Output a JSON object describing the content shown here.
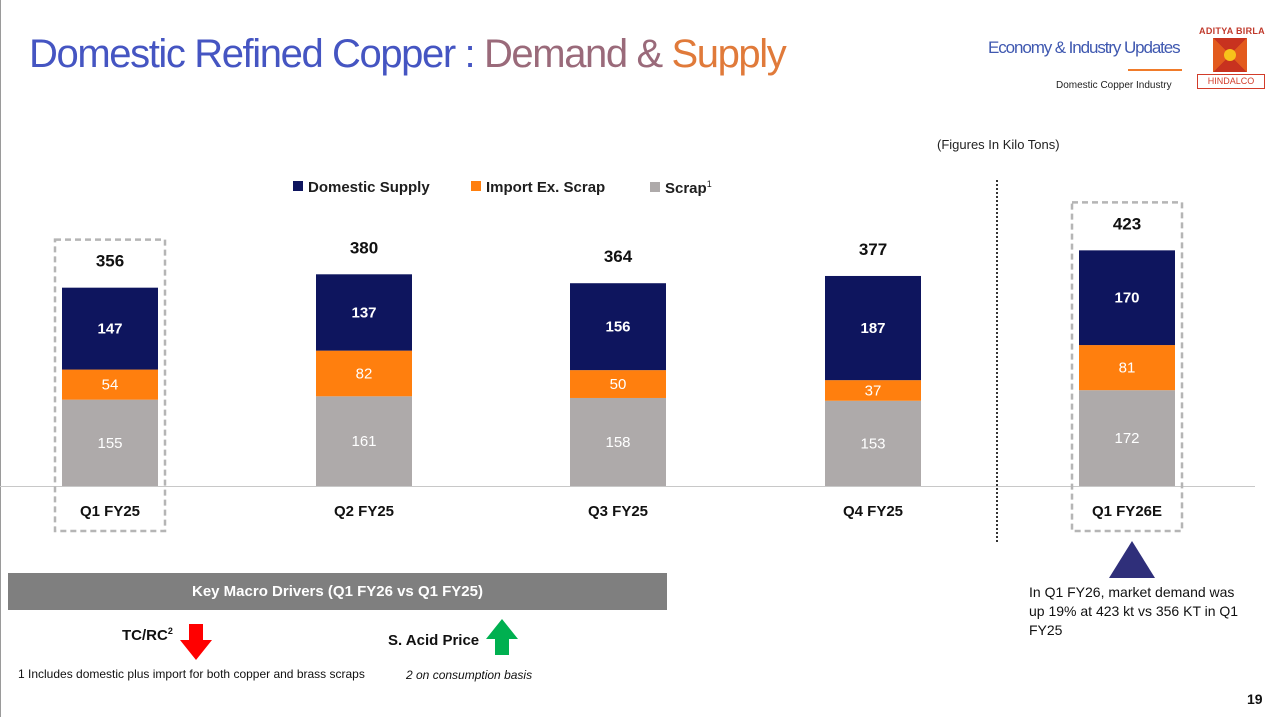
{
  "header": {
    "title_part1": "Domestic Refined Copper : ",
    "title_part2": "Demand & ",
    "title_part3": "Supply",
    "section": "Economy & Industry Updates",
    "subsection": "Domestic Copper Industry",
    "logo_top_text": "ADITYA BIRLA",
    "logo_bottom_text": "HINDALCO"
  },
  "units_note": "(Figures In Kilo Tons)",
  "colors": {
    "domestic_supply": "#0e155e",
    "import_ex_scrap": "#ff7f0e",
    "scrap": "#aeaaaa",
    "highlight_border": "#b5b5b5",
    "callout_triangle": "#2f2f7a",
    "down_arrow": "#ff0000",
    "up_arrow": "#00b050"
  },
  "chart_data": {
    "type": "bar",
    "stacked": true,
    "categories": [
      "Q1 FY25",
      "Q2 FY25",
      "Q3 FY25",
      "Q4 FY25",
      "Q1 FY26E"
    ],
    "series": [
      {
        "name": "Scrap",
        "values": [
          155,
          161,
          158,
          153,
          172
        ]
      },
      {
        "name": "Import Ex. Scrap",
        "values": [
          54,
          82,
          50,
          37,
          81
        ]
      },
      {
        "name": "Domestic Supply",
        "values": [
          147,
          137,
          156,
          187,
          170
        ]
      }
    ],
    "totals": [
      356,
      380,
      364,
      377,
      423
    ],
    "highlighted_categories": [
      "Q1 FY25",
      "Q1 FY26E"
    ],
    "legend": {
      "position": "top",
      "items": [
        {
          "label": "Domestic Supply",
          "superscript": ""
        },
        {
          "label": "Import Ex. Scrap",
          "superscript": ""
        },
        {
          "label": "Scrap",
          "superscript": "1"
        }
      ]
    },
    "title": "",
    "xlabel": "",
    "ylabel": "",
    "ylim": [
      0,
      423
    ],
    "grid": false
  },
  "callout": {
    "text": "In Q1 FY26, market demand was up 19% at 423 kt vs 356 KT in Q1 FY25"
  },
  "macro_drivers": {
    "header": "Key Macro Drivers (Q1 FY26 vs Q1 FY25)",
    "items": [
      {
        "label": "TC/RC",
        "superscript": "2",
        "direction": "down",
        "icon": "down-arrow-icon"
      },
      {
        "label": "S. Acid Price",
        "superscript": "",
        "direction": "up",
        "icon": "up-arrow-icon"
      }
    ]
  },
  "footnotes": {
    "note1": "1 Includes domestic plus import for both copper and brass scraps",
    "note2": "2 on consumption basis"
  },
  "page_number": "19"
}
